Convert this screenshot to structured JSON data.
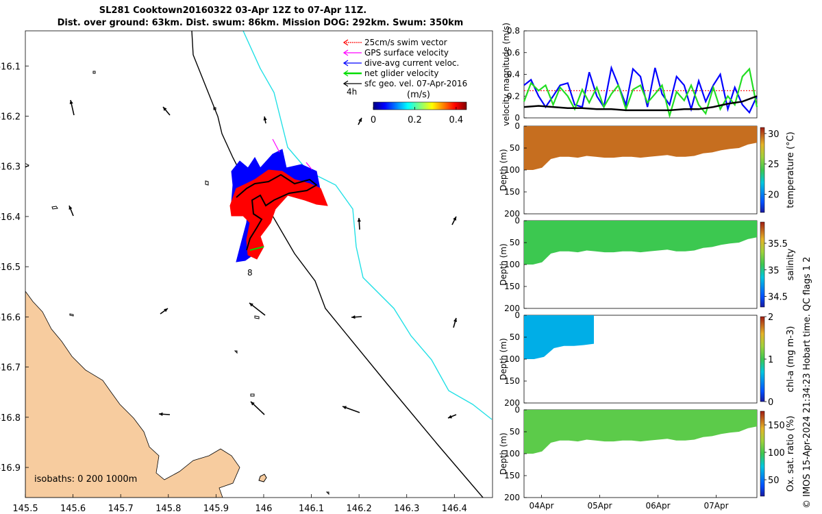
{
  "title": {
    "line1": "SL281 Cooktown20160322 03-Apr 12Z to 07-Apr 11Z.",
    "line2": "Dist. over ground: 63km. Dist. swum: 86km. Mission DOG: 292km. Swum: 350km"
  },
  "credit": "© IMOS 15-Apr-2024 21:34:23 Hobart time. QC flags 1  2",
  "colors": {
    "land": "#f7cc9f",
    "isobath": "#000000",
    "isobath_deep": "#22e0e6",
    "swim_vector": "#ff0000",
    "gps_velocity": "#ff00ff",
    "current": "#0000ff",
    "net_velocity": "#00dd00",
    "sfc_geo": "#000000"
  },
  "map": {
    "xticks": [
      "145.5",
      "145.6",
      "145.7",
      "145.8",
      "145.9",
      "146",
      "146.1",
      "146.2",
      "146.3",
      "146.4"
    ],
    "yticks": [
      "-16.1",
      "-16.2",
      "-16.3",
      "-16.4",
      "-16.5",
      "-16.6",
      "-16.7",
      "-16.8",
      "-16.9"
    ],
    "xlim": [
      145.5,
      146.48
    ],
    "ylim": [
      -16.96,
      -16.03
    ],
    "time_label": "4h",
    "day_label": "8",
    "isobaths_text": "isobaths: 0   200  1000m",
    "legend": [
      {
        "label": "25cm/s swim vector",
        "icon": "red-dotted-arrow-icon"
      },
      {
        "label": "GPS surface velocity",
        "icon": "magenta-arrow-icon"
      },
      {
        "label": "dive-avg current veloc.",
        "icon": "blue-arrow-icon"
      },
      {
        "label": "net glider velocity",
        "icon": "green-arrow-icon"
      },
      {
        "label": "sfc geo. vel. 07-Apr-2016",
        "icon": "black-arrow-icon"
      }
    ],
    "colorbar": {
      "label": "(m/s)",
      "ticks": [
        "0",
        "0.2",
        "0.4"
      ],
      "range": [
        0,
        0.45
      ]
    }
  },
  "chart_data": [
    {
      "type": "line",
      "ylabel": "velocity magnitude (m/s)",
      "ylim": [
        0,
        0.8
      ],
      "yticks": [
        "0",
        "0.2",
        "0.4",
        "0.6",
        "0.8"
      ],
      "xlim": [
        0,
        4
      ],
      "series": [
        {
          "style": "red-dotted",
          "x": [
            0,
            4
          ],
          "values": [
            0.25,
            0.25
          ]
        },
        {
          "style": "blue",
          "x": [
            0,
            0.12,
            0.25,
            0.37,
            0.5,
            0.62,
            0.75,
            0.87,
            1,
            1.12,
            1.25,
            1.37,
            1.5,
            1.62,
            1.75,
            1.87,
            2,
            2.12,
            2.25,
            2.37,
            2.5,
            2.62,
            2.75,
            2.87,
            3,
            3.12,
            3.25,
            3.37,
            3.5,
            3.62,
            3.75,
            3.87,
            4
          ],
          "values": [
            0.3,
            0.35,
            0.2,
            0.1,
            0.2,
            0.3,
            0.32,
            0.12,
            0.1,
            0.42,
            0.2,
            0.1,
            0.46,
            0.3,
            0.12,
            0.45,
            0.38,
            0.1,
            0.46,
            0.22,
            0.12,
            0.38,
            0.3,
            0.08,
            0.34,
            0.15,
            0.3,
            0.4,
            0.08,
            0.28,
            0.12,
            0.05,
            0.2
          ]
        },
        {
          "style": "green",
          "x": [
            0,
            0.12,
            0.25,
            0.37,
            0.5,
            0.62,
            0.75,
            0.87,
            1,
            1.12,
            1.25,
            1.37,
            1.5,
            1.62,
            1.75,
            1.87,
            2,
            2.12,
            2.25,
            2.37,
            2.5,
            2.62,
            2.75,
            2.87,
            3,
            3.12,
            3.25,
            3.37,
            3.5,
            3.62,
            3.75,
            3.87,
            4
          ],
          "values": [
            0.15,
            0.32,
            0.25,
            0.3,
            0.12,
            0.28,
            0.2,
            0.08,
            0.26,
            0.14,
            0.28,
            0.1,
            0.22,
            0.3,
            0.08,
            0.26,
            0.3,
            0.14,
            0.22,
            0.3,
            0.02,
            0.24,
            0.16,
            0.3,
            0.12,
            0.04,
            0.28,
            0.08,
            0.2,
            0.12,
            0.38,
            0.45,
            0.1
          ]
        },
        {
          "style": "black",
          "x": [
            0,
            0.25,
            0.5,
            0.75,
            1,
            1.25,
            1.5,
            1.75,
            2,
            2.25,
            2.5,
            2.75,
            3,
            3.25,
            3.5,
            3.75,
            4
          ],
          "values": [
            0.1,
            0.11,
            0.1,
            0.09,
            0.09,
            0.08,
            0.08,
            0.07,
            0.07,
            0.07,
            0.07,
            0.08,
            0.08,
            0.1,
            0.13,
            0.15,
            0.2
          ]
        }
      ]
    },
    {
      "type": "heatmap",
      "ylabel": "Depth (m)",
      "yticks": [
        "0",
        "50",
        "100",
        "150",
        "200"
      ],
      "ylim": [
        200,
        0
      ],
      "cbar_label": "temperature (°C)",
      "cbar_ticks": [
        "20",
        "25",
        "30"
      ],
      "cbar_range": [
        17,
        31
      ],
      "value": 29.5,
      "max_depth": [
        100,
        100,
        95,
        75,
        70,
        70,
        72,
        68,
        70,
        72,
        72,
        70,
        70,
        72,
        70,
        68,
        66,
        70,
        70,
        68,
        62,
        60,
        55,
        52,
        50,
        42,
        38
      ]
    },
    {
      "type": "heatmap",
      "ylabel": "Depth (m)",
      "yticks": [
        "0",
        "50",
        "100",
        "150",
        "200"
      ],
      "ylim": [
        200,
        0
      ],
      "cbar_label": "salinity",
      "cbar_ticks": [
        "34.5",
        "35",
        "35.5"
      ],
      "cbar_range": [
        34.3,
        35.9
      ],
      "value": 35.1,
      "max_depth": [
        100,
        100,
        95,
        75,
        70,
        70,
        72,
        68,
        70,
        72,
        72,
        70,
        70,
        72,
        70,
        68,
        66,
        70,
        70,
        68,
        62,
        60,
        55,
        52,
        50,
        42,
        38
      ]
    },
    {
      "type": "heatmap",
      "ylabel": "Depth (m)",
      "yticks": [
        "0",
        "50",
        "100",
        "150",
        "200"
      ],
      "ylim": [
        200,
        0
      ],
      "cbar_label": "chl-a (mg m-3)",
      "cbar_ticks": [
        "0",
        "1",
        "2"
      ],
      "cbar_range": [
        0,
        2
      ],
      "value": 0.6,
      "x_end": 1.2,
      "max_depth": [
        100,
        100,
        95,
        75,
        70,
        70,
        68,
        65
      ]
    },
    {
      "type": "heatmap",
      "ylabel": "Depth (m)",
      "yticks": [
        "0",
        "50",
        "100",
        "150",
        "200"
      ],
      "ylim": [
        200,
        0
      ],
      "xticks": [
        "04Apr",
        "05Apr",
        "06Apr",
        "07Apr"
      ],
      "cbar_label": "Ox. sat. ratio (%)",
      "cbar_ticks": [
        "50",
        "100",
        "150"
      ],
      "cbar_range": [
        20,
        175
      ],
      "value": 105,
      "max_depth": [
        100,
        100,
        95,
        75,
        70,
        70,
        72,
        68,
        70,
        72,
        72,
        70,
        70,
        72,
        70,
        68,
        66,
        70,
        70,
        68,
        62,
        60,
        55,
        52,
        50,
        42,
        38
      ]
    }
  ]
}
